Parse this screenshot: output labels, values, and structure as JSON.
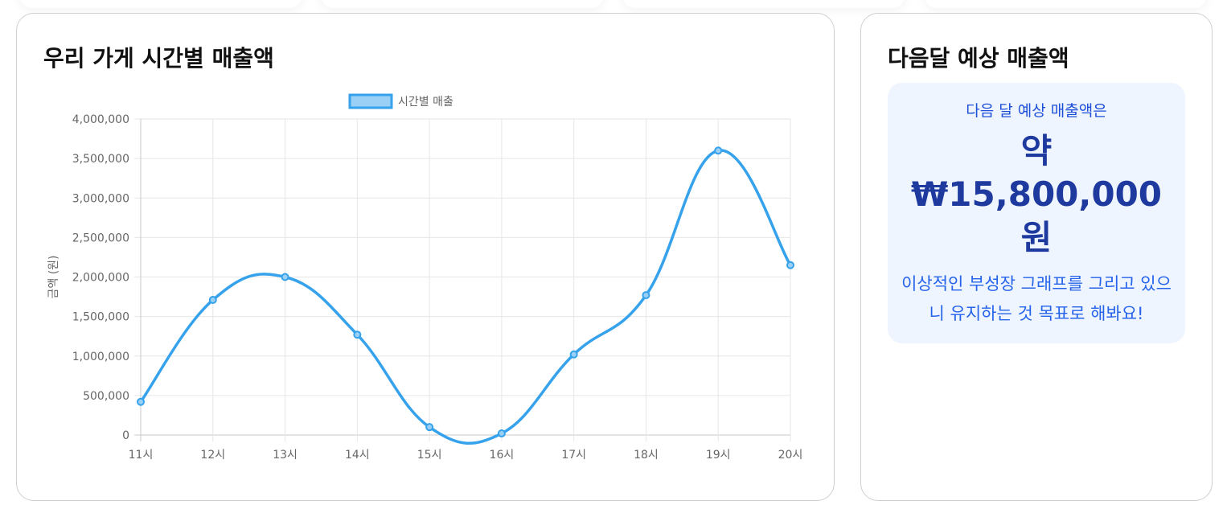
{
  "sales_card": {
    "title": "우리 가게 시간별 매출액"
  },
  "forecast_card": {
    "title": "다음달 예상 매출액",
    "intro": "다음 달 예상 매출액은",
    "amount_prefix": "약",
    "amount_value": "₩15,800,000",
    "amount_suffix": "원",
    "note": "이상적인 부성장 그래프를 그리고 있으니 유지하는 것 목표로 해봐요!"
  },
  "colors": {
    "line": "#36a2eb",
    "legend_fill": "#9ad0f5",
    "forecast_bg": "#eef5ff",
    "forecast_amount": "#1e3a9f",
    "forecast_text": "#2563eb"
  },
  "chart_data": {
    "type": "line",
    "categories": [
      "11시",
      "12시",
      "13시",
      "14시",
      "15시",
      "16시",
      "17시",
      "18시",
      "19시",
      "20시"
    ],
    "series": [
      {
        "name": "시간별 매출",
        "values": [
          420000,
          1710000,
          2000000,
          1270000,
          100000,
          20000,
          1020000,
          1770000,
          3600000,
          2150000
        ]
      }
    ],
    "ylabel": "금액 (원)",
    "xlabel": "",
    "ylim": [
      0,
      4000000
    ],
    "yticks": [
      "0",
      "500,000",
      "1,000,000",
      "1,500,000",
      "2,000,000",
      "2,500,000",
      "3,000,000",
      "3,500,000",
      "4,000,000"
    ],
    "grid": true,
    "legend": "top-center",
    "smooth": true
  }
}
